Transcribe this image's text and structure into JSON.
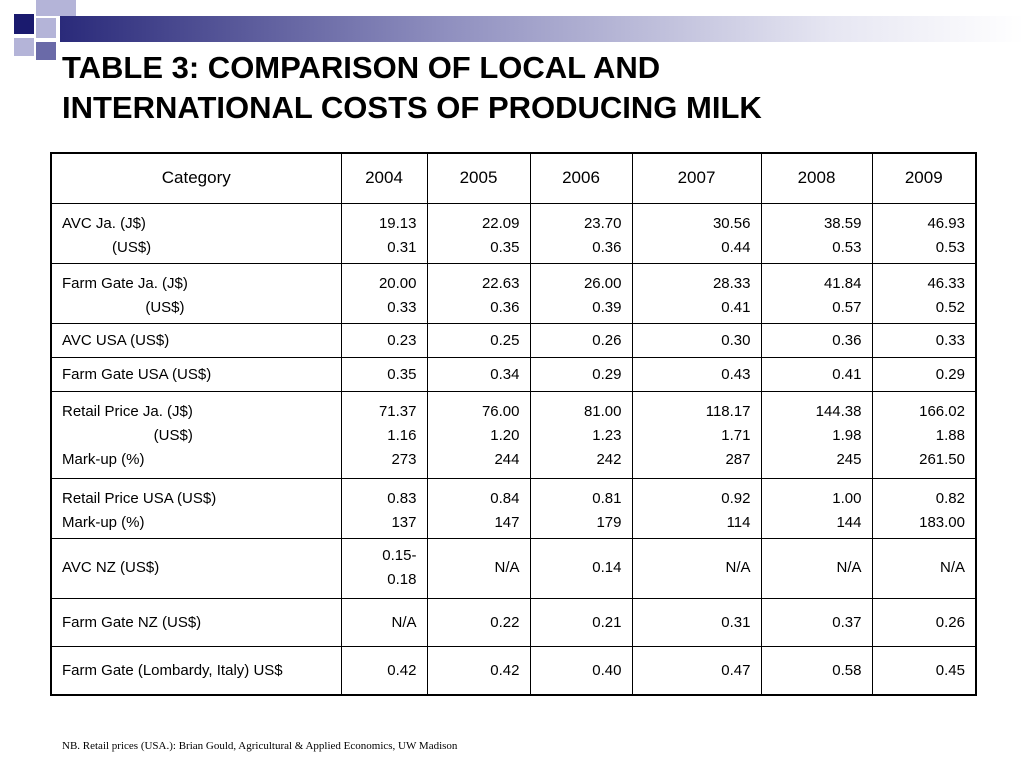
{
  "title_lines": [
    "TABLE 3:  COMPARISON OF LOCAL AND",
    "INTERNATIONAL COSTS OF PRODUCING MILK"
  ],
  "table": {
    "headers": [
      "Category",
      "2004",
      "2005",
      "2006",
      "2007",
      "2008",
      "2009"
    ],
    "rows": [
      {
        "labels": [
          "AVC Ja. (J$)",
          "            (US$)"
        ],
        "values": [
          [
            "19.13",
            "0.31"
          ],
          [
            "22.09",
            "0.35"
          ],
          [
            "23.70",
            "0.36"
          ],
          [
            "30.56",
            "0.44"
          ],
          [
            "38.59",
            "0.53"
          ],
          [
            "46.93",
            "0.53"
          ]
        ]
      },
      {
        "labels": [
          "Farm Gate Ja. (J$)",
          "                    (US$)"
        ],
        "values": [
          [
            "20.00",
            "0.33"
          ],
          [
            "22.63",
            "0.36"
          ],
          [
            "26.00",
            "0.39"
          ],
          [
            "28.33",
            "0.41"
          ],
          [
            "41.84",
            "0.57"
          ],
          [
            "46.33",
            "0.52"
          ]
        ]
      },
      {
        "labels": [
          "AVC USA (US$)"
        ],
        "values": [
          [
            "0.23"
          ],
          [
            "0.25"
          ],
          [
            "0.26"
          ],
          [
            "0.30"
          ],
          [
            "0.36"
          ],
          [
            "0.33"
          ]
        ]
      },
      {
        "labels": [
          "Farm Gate USA (US$)"
        ],
        "values": [
          [
            "0.35"
          ],
          [
            "0.34"
          ],
          [
            "0.29"
          ],
          [
            "0.43"
          ],
          [
            "0.41"
          ],
          [
            "0.29"
          ]
        ]
      },
      {
        "labels": [
          "Retail Price Ja. (J$)",
          "                      (US$)",
          "Mark-up (%)"
        ],
        "values": [
          [
            "71.37",
            "1.16",
            "273"
          ],
          [
            "76.00",
            "1.20",
            "244"
          ],
          [
            "81.00",
            "1.23",
            "242"
          ],
          [
            "118.17",
            "1.71",
            "287"
          ],
          [
            "144.38",
            "1.98",
            "245"
          ],
          [
            "166.02",
            "1.88",
            "261.50"
          ]
        ]
      },
      {
        "labels": [
          "Retail Price USA (US$)",
          "Mark-up (%)"
        ],
        "values": [
          [
            "0.83",
            "137"
          ],
          [
            "0.84",
            "147"
          ],
          [
            "0.81",
            "179"
          ],
          [
            "0.92",
            "114"
          ],
          [
            "1.00",
            "144"
          ],
          [
            "0.82",
            "183.00"
          ]
        ]
      },
      {
        "labels": [
          "AVC NZ (US$)"
        ],
        "values": [
          [
            "0.15-",
            "0.18"
          ],
          [
            "N/A"
          ],
          [
            "0.14"
          ],
          [
            "N/A"
          ],
          [
            "N/A"
          ],
          [
            "N/A"
          ]
        ]
      },
      {
        "labels": [
          "Farm Gate NZ (US$)"
        ],
        "values": [
          [
            "N/A"
          ],
          [
            "0.22"
          ],
          [
            "0.21"
          ],
          [
            "0.31"
          ],
          [
            "0.37"
          ],
          [
            "0.26"
          ]
        ]
      },
      {
        "labels": [
          "Farm Gate (Lombardy, Italy) US$"
        ],
        "values": [
          [
            "0.42"
          ],
          [
            "0.42"
          ],
          [
            "0.40"
          ],
          [
            "0.47"
          ],
          [
            "0.58"
          ],
          [
            "0.45"
          ]
        ]
      }
    ]
  },
  "footnote": "NB. Retail prices (USA.): Brian Gould, Agricultural & Applied Economics, UW Madison"
}
